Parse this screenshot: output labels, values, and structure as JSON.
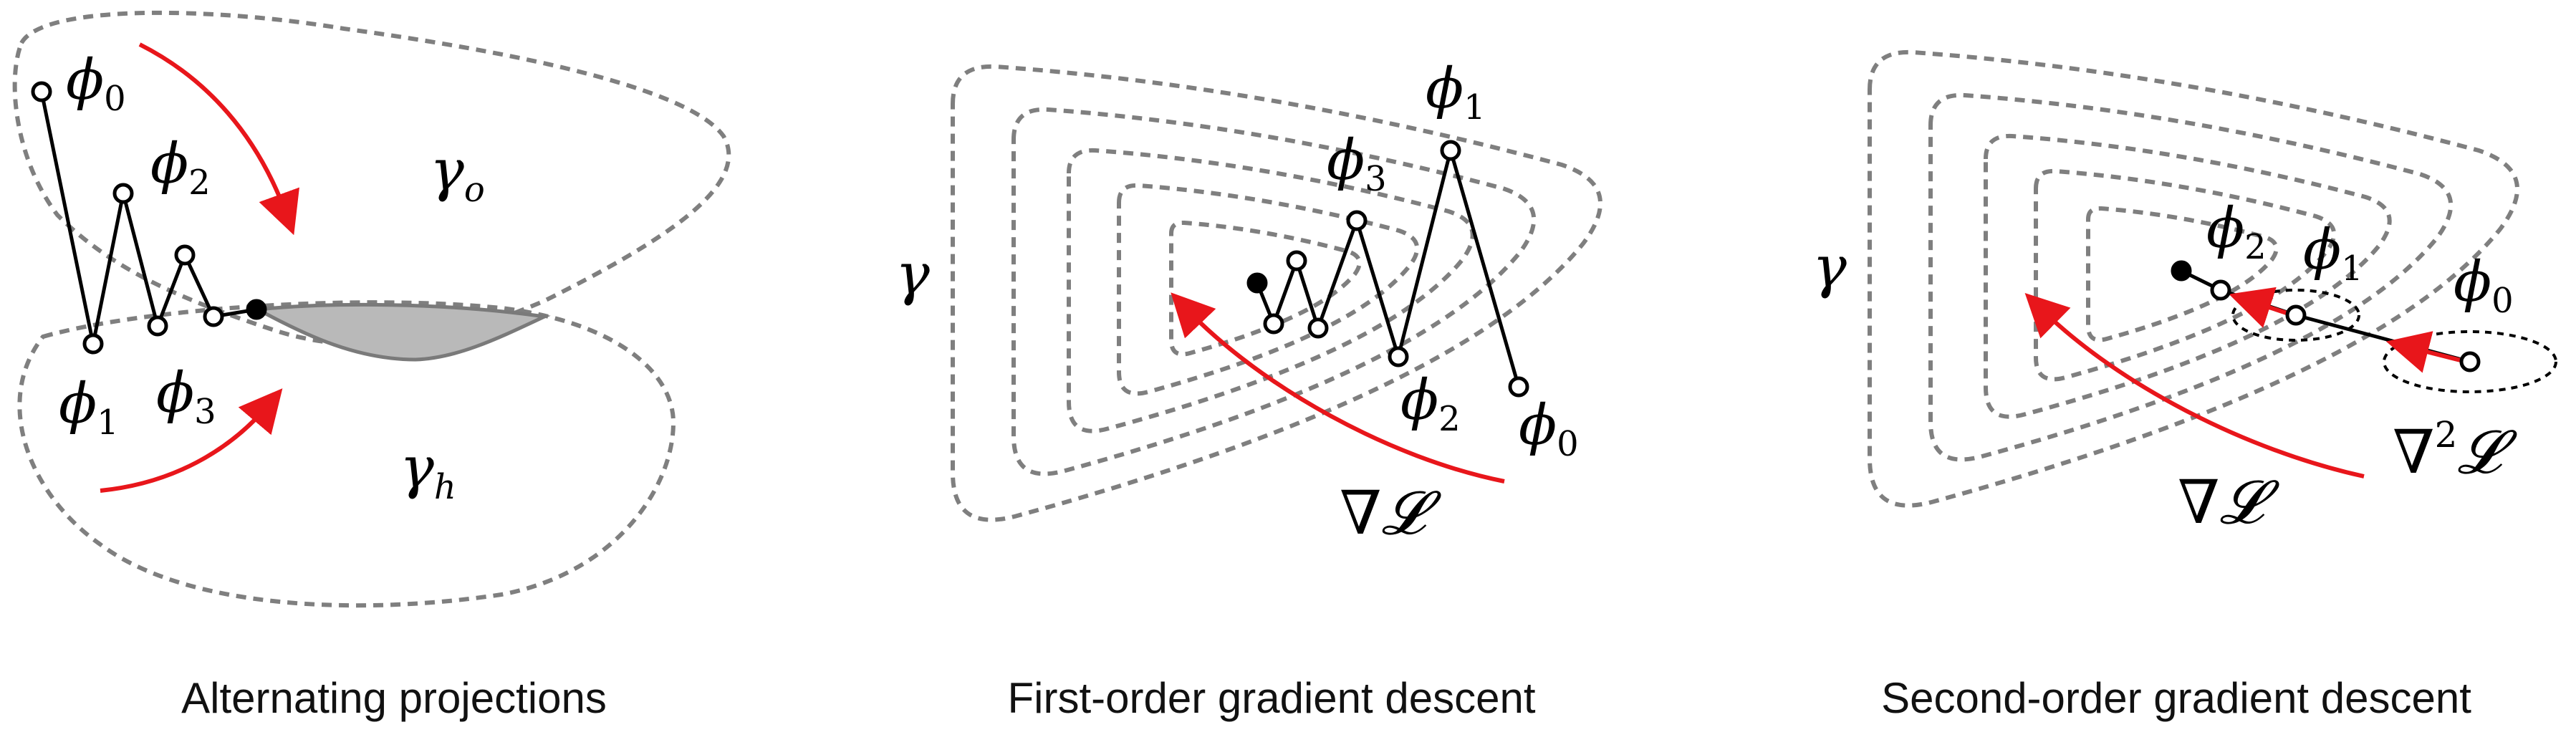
{
  "colors": {
    "red_arrow": "#e8161b",
    "contour": "#7f7f7f",
    "region_fill": "#b9b9b9"
  },
  "panels": [
    {
      "caption": "Alternating projections",
      "labels": {
        "phi0": "ϕ",
        "phi0_sub": "0",
        "phi1": "ϕ",
        "phi1_sub": "1",
        "phi2": "ϕ",
        "phi2_sub": "2",
        "phi3": "ϕ",
        "phi3_sub": "3",
        "gamma_o": "γ",
        "gamma_o_sub": "o",
        "gamma_h": "γ",
        "gamma_h_sub": "h"
      }
    },
    {
      "caption": "First-order gradient descent",
      "labels": {
        "phi0": "ϕ",
        "phi0_sub": "0",
        "phi1": "ϕ",
        "phi1_sub": "1",
        "phi2": "ϕ",
        "phi2_sub": "2",
        "phi3": "ϕ",
        "phi3_sub": "3",
        "gamma": "γ",
        "grad": "∇𝓛"
      }
    },
    {
      "caption": "Second-order gradient descent",
      "labels": {
        "phi0": "ϕ",
        "phi0_sub": "0",
        "phi1": "ϕ",
        "phi1_sub": "1",
        "phi2": "ϕ",
        "phi2_sub": "2",
        "gamma": "γ",
        "grad": "∇𝓛",
        "hess": "∇",
        "hess_sup": "2",
        "hess_L": "𝓛"
      }
    }
  ]
}
